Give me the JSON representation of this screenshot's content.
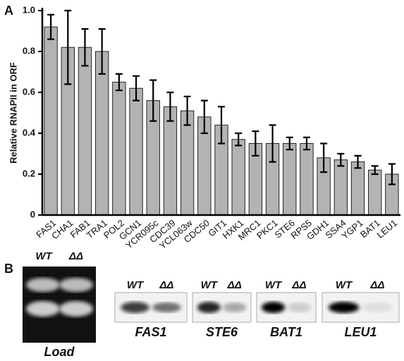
{
  "chart_data": {
    "type": "bar",
    "panel_label": "A",
    "ylabel": "Relative RNAPII in ORF",
    "categories": [
      "FAS1",
      "CHA1",
      "FAB1",
      "TRA1",
      "POL2",
      "GCN1",
      "YCR095c",
      "CDC39",
      "YCL063w",
      "CDC50",
      "GIT1",
      "HXK1",
      "MRC1",
      "PKC1",
      "STE6",
      "RPS5",
      "GDH1",
      "SSA4",
      "YGP1",
      "BAT1",
      "LEU1"
    ],
    "values": [
      0.92,
      0.82,
      0.82,
      0.8,
      0.65,
      0.62,
      0.56,
      0.53,
      0.51,
      0.48,
      0.44,
      0.37,
      0.35,
      0.35,
      0.35,
      0.35,
      0.28,
      0.27,
      0.26,
      0.22,
      0.2
    ],
    "errors": [
      0.06,
      0.18,
      0.09,
      0.11,
      0.04,
      0.06,
      0.1,
      0.07,
      0.07,
      0.08,
      0.09,
      0.03,
      0.06,
      0.09,
      0.03,
      0.03,
      0.07,
      0.03,
      0.03,
      0.02,
      0.05
    ],
    "color": "#b3b3b3",
    "ylim": [
      0,
      1
    ],
    "yticks": [
      0,
      0.2,
      0.4,
      0.6,
      0.8,
      {
        "value": 1,
        "label": "1.0"
      }
    ]
  },
  "panel_b": {
    "label": "B",
    "load": {
      "lanes": [
        "WT",
        "ΔΔ"
      ],
      "caption": "Load"
    },
    "blots": [
      {
        "lanes": [
          "WT",
          "ΔΔ"
        ],
        "gene": "FAS1"
      },
      {
        "lanes": [
          "WT",
          "ΔΔ"
        ],
        "gene": "STE6"
      },
      {
        "lanes": [
          "WT",
          "ΔΔ"
        ],
        "gene": "BAT1"
      },
      {
        "lanes": [
          "WT",
          "ΔΔ"
        ],
        "gene": "LEU1"
      }
    ]
  }
}
